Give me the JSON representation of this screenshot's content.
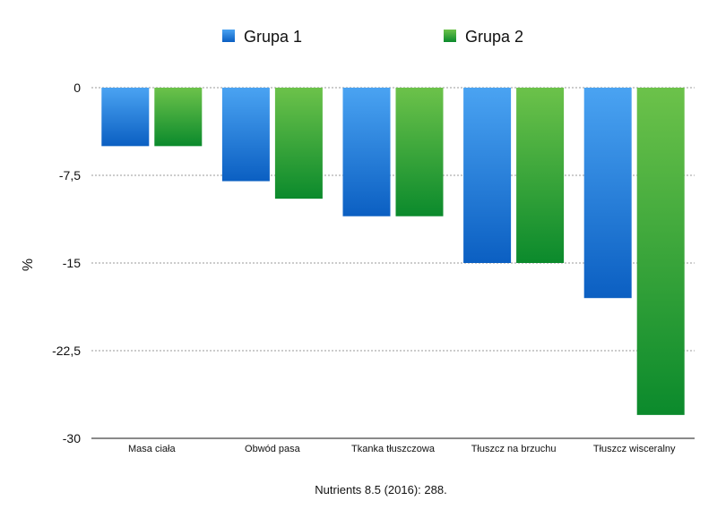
{
  "chart_data": {
    "type": "bar",
    "categories": [
      "Masa ciała",
      "Obwód pasa",
      "Tkanka tłuszczowa",
      "Tłuszcz na brzuchu",
      "Tłuszcz wisceralny"
    ],
    "series": [
      {
        "name": "Grupa 1",
        "values": [
          -5,
          -8,
          -11,
          -15,
          -18
        ],
        "color": "#1a6fd6"
      },
      {
        "name": "Grupa 2",
        "values": [
          -5,
          -9.5,
          -11,
          -15,
          -28
        ],
        "color": "#2a9e3a"
      }
    ],
    "ylabel": "%",
    "ylim": [
      -30,
      0
    ],
    "yticks": [
      0,
      -7.5,
      -15,
      -22.5,
      -30
    ],
    "ytick_labels": [
      "0",
      "-7,5",
      "-15",
      "-22,5",
      "-30"
    ],
    "grid": true,
    "legend_position": "top-center",
    "source": "Nutrients 8.5 (2016): 288."
  }
}
